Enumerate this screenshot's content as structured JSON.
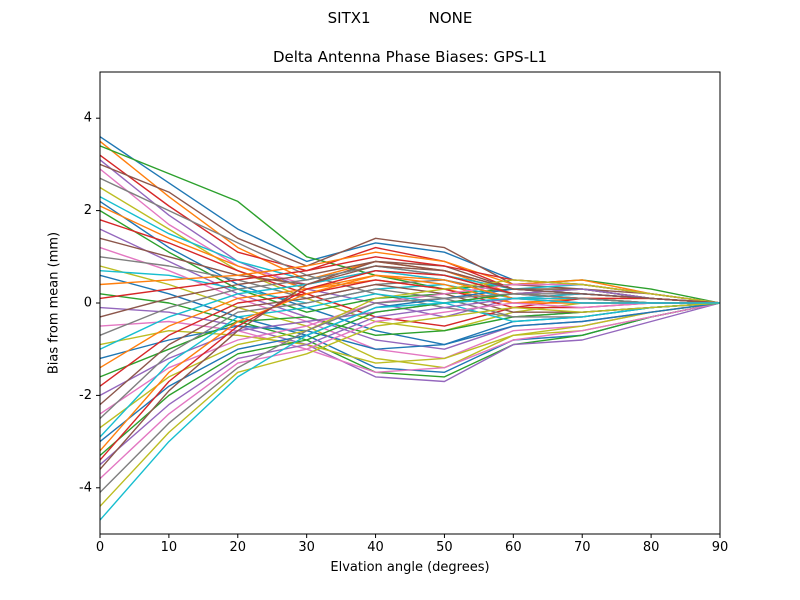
{
  "header": {
    "station": "SITX1",
    "antenna": "NONE"
  },
  "chart_data": {
    "type": "line",
    "title": "Delta Antenna Phase Biases: GPS-L1",
    "xlabel": "Elvation angle (degrees)",
    "ylabel": "Bias from mean (mm)",
    "xlim": [
      0,
      90
    ],
    "ylim": [
      -5,
      5
    ],
    "xticks": [
      0,
      10,
      20,
      30,
      40,
      50,
      60,
      70,
      80,
      90
    ],
    "yticks": [
      -4,
      -2,
      0,
      2,
      4
    ],
    "grid": false,
    "legend": "none",
    "x": [
      0,
      10,
      20,
      30,
      40,
      50,
      60,
      70,
      80,
      90
    ],
    "palette": [
      "#1f77b4",
      "#ff7f0e",
      "#2ca02c",
      "#d62728",
      "#9467bd",
      "#8c564b",
      "#e377c2",
      "#7f7f7f",
      "#bcbd22",
      "#17becf"
    ],
    "series": [
      [
        3.6,
        2.6,
        1.6,
        0.9,
        1.3,
        1.1,
        0.5,
        0.4,
        0.2,
        0
      ],
      [
        3.5,
        2.3,
        1.2,
        0.5,
        0.9,
        0.7,
        0.2,
        0.3,
        0.1,
        0
      ],
      [
        3.4,
        2.8,
        2.2,
        1.0,
        0.6,
        0.3,
        0.4,
        0.5,
        0.3,
        0
      ],
      [
        3.2,
        2.1,
        1.1,
        0.7,
        1.2,
        0.9,
        0.3,
        0.2,
        0.1,
        0
      ],
      [
        3.1,
        1.9,
        0.9,
        0.3,
        0.0,
        -0.3,
        0.1,
        0.2,
        0.1,
        0
      ],
      [
        3.0,
        2.4,
        1.4,
        0.8,
        1.4,
        1.2,
        0.4,
        0.3,
        0.2,
        0
      ],
      [
        2.9,
        1.7,
        0.8,
        0.4,
        0.7,
        0.5,
        0.1,
        0.1,
        0.0,
        0
      ],
      [
        2.7,
        2.0,
        1.3,
        0.6,
        0.2,
        -0.1,
        -0.3,
        -0.2,
        -0.1,
        0
      ],
      [
        2.5,
        1.6,
        0.7,
        0.1,
        -0.4,
        -0.6,
        -0.2,
        0.0,
        0.0,
        0
      ],
      [
        2.3,
        1.5,
        0.9,
        0.5,
        0.8,
        0.6,
        0.3,
        0.4,
        0.2,
        0
      ],
      [
        2.2,
        1.2,
        0.4,
        -0.1,
        -0.6,
        -0.9,
        -0.4,
        -0.3,
        -0.1,
        0
      ],
      [
        2.1,
        1.4,
        0.8,
        0.3,
        0.5,
        0.3,
        0.0,
        0.1,
        0.1,
        0
      ],
      [
        2.0,
        1.1,
        0.3,
        -0.2,
        0.1,
        0.2,
        0.3,
        0.3,
        0.1,
        0
      ],
      [
        1.8,
        1.3,
        0.7,
        0.2,
        -0.3,
        -0.5,
        -0.1,
        0.1,
        0.0,
        0
      ],
      [
        1.6,
        0.9,
        0.2,
        -0.3,
        -0.8,
        -1.0,
        -0.5,
        -0.4,
        -0.2,
        0
      ],
      [
        1.4,
        1.0,
        0.6,
        0.4,
        0.9,
        0.8,
        0.3,
        0.2,
        0.1,
        0
      ],
      [
        1.2,
        0.7,
        0.1,
        -0.4,
        -1.0,
        -1.2,
        -0.6,
        -0.5,
        -0.2,
        0
      ],
      [
        1.0,
        0.8,
        0.5,
        0.1,
        0.4,
        0.5,
        0.2,
        0.3,
        0.1,
        0
      ],
      [
        0.8,
        0.4,
        -0.1,
        -0.5,
        -1.2,
        -1.4,
        -0.7,
        -0.6,
        -0.3,
        0
      ],
      [
        0.7,
        0.6,
        0.3,
        0.0,
        0.3,
        0.4,
        0.1,
        0.2,
        0.1,
        0
      ],
      [
        0.6,
        0.2,
        -0.3,
        -0.7,
        -1.4,
        -1.5,
        -0.8,
        -0.7,
        -0.3,
        0
      ],
      [
        0.4,
        0.5,
        0.6,
        0.8,
        1.1,
        0.9,
        0.4,
        0.5,
        0.2,
        0
      ],
      [
        0.2,
        0.0,
        -0.4,
        -0.8,
        -1.5,
        -1.6,
        -0.9,
        -0.7,
        -0.3,
        0
      ],
      [
        0.1,
        0.3,
        0.5,
        0.7,
        1.0,
        0.8,
        0.5,
        0.4,
        0.2,
        0
      ],
      [
        -0.1,
        -0.2,
        -0.5,
        -0.9,
        -1.6,
        -1.7,
        -0.9,
        -0.8,
        -0.4,
        0
      ],
      [
        -0.3,
        0.1,
        0.4,
        0.6,
        0.9,
        0.7,
        0.3,
        0.3,
        0.1,
        0
      ],
      [
        -0.5,
        -0.4,
        -0.6,
        -1.0,
        -1.5,
        -1.4,
        -0.8,
        -0.6,
        -0.3,
        0
      ],
      [
        -0.7,
        -0.1,
        0.3,
        0.5,
        0.8,
        0.6,
        0.2,
        0.2,
        0.1,
        0
      ],
      [
        -0.9,
        -0.6,
        -0.7,
        -0.9,
        -1.3,
        -1.2,
        -0.7,
        -0.5,
        -0.2,
        0
      ],
      [
        -1.0,
        -0.3,
        0.2,
        0.4,
        0.7,
        0.5,
        0.1,
        0.1,
        0.0,
        0
      ],
      [
        -1.2,
        -0.8,
        -0.5,
        -0.6,
        -1.0,
        -0.9,
        -0.5,
        -0.4,
        -0.2,
        0
      ],
      [
        -1.4,
        -0.5,
        0.1,
        0.3,
        0.6,
        0.4,
        0.0,
        0.0,
        0.0,
        0
      ],
      [
        -1.6,
        -1.0,
        -0.4,
        -0.3,
        -0.7,
        -0.6,
        -0.3,
        -0.2,
        -0.1,
        0
      ],
      [
        -1.8,
        -0.7,
        0.0,
        0.2,
        0.5,
        0.3,
        -0.1,
        -0.1,
        0.0,
        0
      ],
      [
        -2.0,
        -1.2,
        -0.6,
        -0.4,
        -0.2,
        0.0,
        0.2,
        0.3,
        0.1,
        0
      ],
      [
        -2.2,
        -0.9,
        -0.1,
        0.1,
        0.4,
        0.2,
        -0.2,
        -0.2,
        -0.1,
        0
      ],
      [
        -2.4,
        -1.4,
        -0.8,
        -0.5,
        0.0,
        0.2,
        0.4,
        0.4,
        0.2,
        0
      ],
      [
        -2.5,
        -1.1,
        -0.2,
        0.0,
        0.3,
        0.1,
        -0.3,
        -0.3,
        -0.1,
        0
      ],
      [
        -2.7,
        -1.6,
        -0.9,
        -0.6,
        0.1,
        0.3,
        0.5,
        0.4,
        0.2,
        0
      ],
      [
        -2.9,
        -1.3,
        -0.3,
        -0.1,
        0.2,
        0.0,
        -0.4,
        -0.3,
        -0.1,
        0
      ],
      [
        -3.0,
        -1.8,
        -1.0,
        -0.7,
        -0.1,
        0.1,
        0.3,
        0.2,
        0.1,
        0
      ],
      [
        -3.2,
        -1.5,
        -0.4,
        0.2,
        0.6,
        0.5,
        0.1,
        0.0,
        0.0,
        0
      ],
      [
        -3.3,
        -2.0,
        -1.1,
        -0.8,
        -0.2,
        0.0,
        0.2,
        0.1,
        0.0,
        0
      ],
      [
        -3.4,
        -1.7,
        -0.5,
        0.3,
        0.7,
        0.6,
        0.2,
        0.1,
        0.1,
        0
      ],
      [
        -3.5,
        -2.2,
        -1.2,
        -0.9,
        -0.3,
        -0.1,
        0.1,
        0.0,
        0.0,
        0
      ],
      [
        -3.6,
        -1.9,
        -0.6,
        0.4,
        0.8,
        0.7,
        0.3,
        0.2,
        0.1,
        0
      ],
      [
        -3.8,
        -2.4,
        -1.3,
        -1.0,
        -0.4,
        -0.2,
        0.0,
        -0.1,
        0.0,
        0
      ],
      [
        -4.1,
        -2.6,
        -1.4,
        -0.6,
        0.0,
        0.1,
        0.2,
        0.1,
        0.0,
        0
      ],
      [
        -4.4,
        -2.8,
        -1.5,
        -1.1,
        -0.5,
        -0.3,
        -0.1,
        -0.2,
        -0.1,
        0
      ],
      [
        -4.7,
        -3.0,
        -1.6,
        -0.7,
        -0.1,
        0.0,
        0.1,
        0.0,
        0.0,
        0
      ]
    ]
  }
}
